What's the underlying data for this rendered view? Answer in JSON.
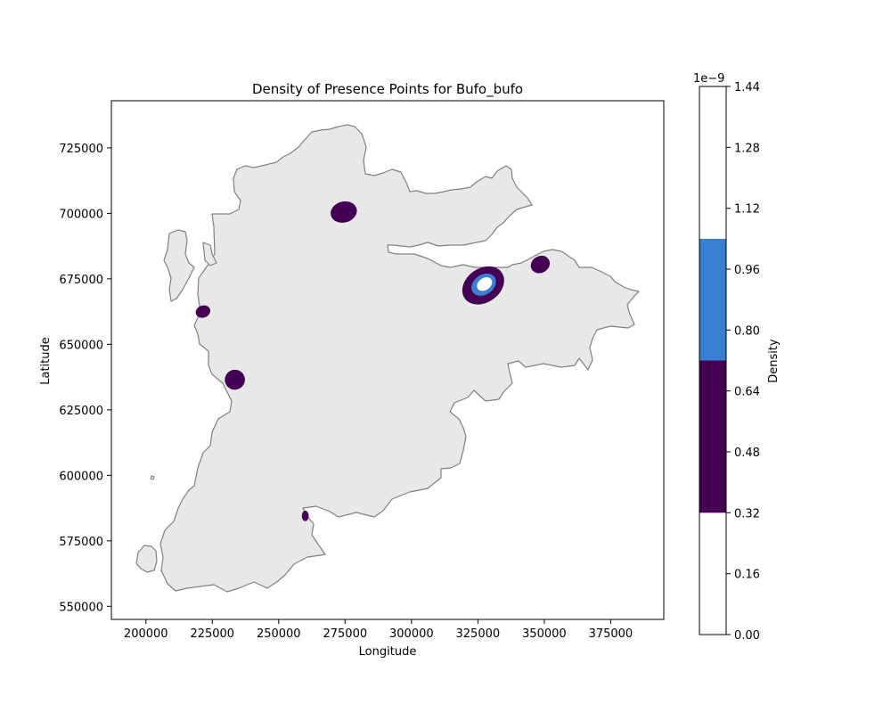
{
  "chart_data": {
    "type": "map-density",
    "title": "Density of Presence Points for Bufo_bufo",
    "xlabel": "Longitude",
    "ylabel": "Latitude",
    "xlim": [
      187000,
      395000
    ],
    "ylim": [
      545000,
      743000
    ],
    "x_ticks": [
      200000,
      225000,
      250000,
      275000,
      300000,
      325000,
      350000,
      375000
    ],
    "y_ticks": [
      550000,
      575000,
      600000,
      625000,
      650000,
      675000,
      700000,
      725000
    ],
    "land_color": "#e8e8e8",
    "coast_color": "#808080",
    "colorbar": {
      "label": "Density",
      "exponent": "1e−9",
      "range": [
        0,
        1.44
      ],
      "ticks": [
        "0.00",
        "0.16",
        "0.32",
        "0.48",
        "0.64",
        "0.80",
        "0.96",
        "1.12",
        "1.28",
        "1.44"
      ],
      "bands": [
        {
          "from": 0.0,
          "to": 0.32,
          "color": "#ffffff"
        },
        {
          "from": 0.32,
          "to": 0.72,
          "color": "#440154"
        },
        {
          "from": 0.72,
          "to": 1.04,
          "color": "#3a80d2"
        },
        {
          "from": 1.04,
          "to": 1.44,
          "color": "#ffffff"
        }
      ]
    },
    "hotspots": [
      {
        "x": 274500,
        "y": 700500,
        "rx": 5000,
        "ry": 4000,
        "rot": -15,
        "level": 1
      },
      {
        "x": 221500,
        "y": 662500,
        "rx": 2800,
        "ry": 2300,
        "rot": -20,
        "level": 1
      },
      {
        "x": 233500,
        "y": 636500,
        "rx": 3800,
        "ry": 3800,
        "rot": -20,
        "level": 1
      },
      {
        "x": 260000,
        "y": 584500,
        "rx": 1300,
        "ry": 2000,
        "rot": 0,
        "level": 1
      },
      {
        "x": 348500,
        "y": 680500,
        "rx": 3700,
        "ry": 3200,
        "rot": -30,
        "level": 1
      },
      {
        "x": 327000,
        "y": 672500,
        "rx": 8500,
        "ry": 6500,
        "rot": -35,
        "level": 1
      },
      {
        "x": 327200,
        "y": 672800,
        "rx": 5000,
        "ry": 3800,
        "rot": -35,
        "level": 2
      },
      {
        "x": 327500,
        "y": 673000,
        "rx": 3100,
        "ry": 2300,
        "rot": -35,
        "level": 3
      }
    ]
  }
}
